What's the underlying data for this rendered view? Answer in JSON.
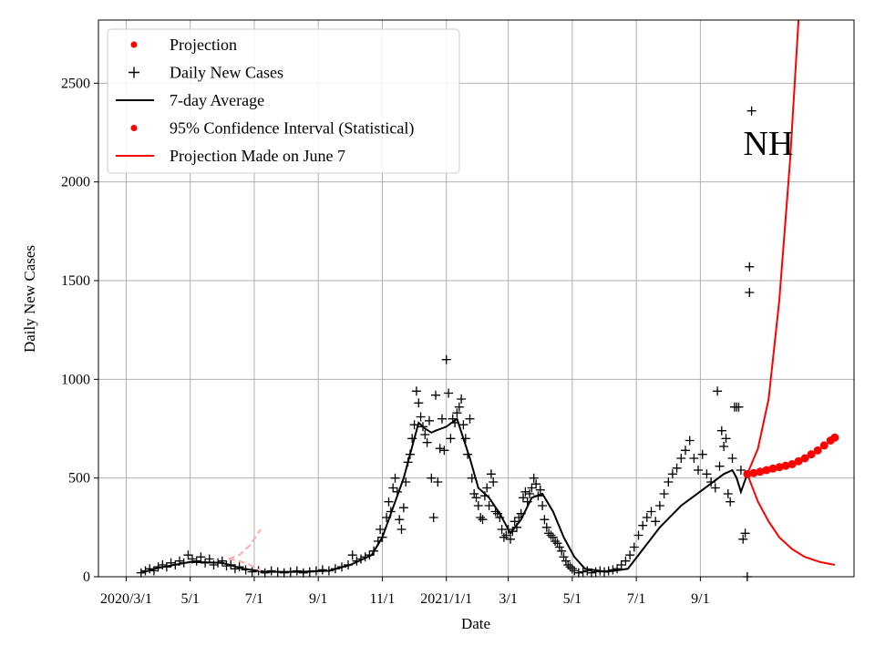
{
  "chart_data": {
    "type": "scatter",
    "title": "",
    "state_label": "NH",
    "xlabel": "Date",
    "ylabel": "Daily New Cases",
    "xlim": [
      -13,
      341
    ],
    "ylim": [
      0,
      2820
    ],
    "grid": true,
    "legend_position": "top-left",
    "x_ticks": [
      {
        "day": 0,
        "label": "2020/3/1"
      },
      {
        "day": 30,
        "label": "5/1"
      },
      {
        "day": 60,
        "label": "7/1"
      },
      {
        "day": 90,
        "label": "9/1"
      },
      {
        "day": 120,
        "label": "11/1"
      },
      {
        "day": 150,
        "label": "2021/1/1"
      },
      {
        "day": 179,
        "label": "3/1"
      },
      {
        "day": 209,
        "label": "5/1"
      },
      {
        "day": 239,
        "label": "7/1"
      },
      {
        "day": 269,
        "label": "9/1"
      }
    ],
    "y_ticks": [
      0,
      500,
      1000,
      1500,
      2000,
      2500
    ],
    "legend": [
      {
        "label": "Projection",
        "marker": "dot",
        "color": "#ff0000"
      },
      {
        "label": "Daily New Cases",
        "marker": "plus",
        "color": "#000000"
      },
      {
        "label": "7-day Average",
        "marker": "line",
        "color": "#000000"
      },
      {
        "label": "95% Confidence Interval (Statistical)",
        "marker": "dot",
        "color": "#ff0000"
      },
      {
        "label": "Projection Made on June 7",
        "marker": "line",
        "color": "#ff0000"
      }
    ],
    "series": [
      {
        "name": "Daily New Cases",
        "marker": "plus",
        "color": "#000000",
        "points": [
          [
            7,
            20
          ],
          [
            9,
            30
          ],
          [
            11,
            40
          ],
          [
            13,
            30
          ],
          [
            15,
            50
          ],
          [
            17,
            60
          ],
          [
            19,
            50
          ],
          [
            21,
            70
          ],
          [
            23,
            60
          ],
          [
            25,
            80
          ],
          [
            27,
            70
          ],
          [
            29,
            110
          ],
          [
            31,
            90
          ],
          [
            33,
            80
          ],
          [
            35,
            100
          ],
          [
            37,
            70
          ],
          [
            39,
            90
          ],
          [
            41,
            60
          ],
          [
            43,
            70
          ],
          [
            45,
            80
          ],
          [
            47,
            55
          ],
          [
            49,
            60
          ],
          [
            51,
            40
          ],
          [
            53,
            50
          ],
          [
            56,
            35
          ],
          [
            59,
            25
          ],
          [
            62,
            30
          ],
          [
            65,
            20
          ],
          [
            68,
            30
          ],
          [
            71,
            25
          ],
          [
            74,
            20
          ],
          [
            77,
            25
          ],
          [
            80,
            30
          ],
          [
            83,
            20
          ],
          [
            86,
            25
          ],
          [
            89,
            30
          ],
          [
            92,
            35
          ],
          [
            95,
            30
          ],
          [
            98,
            40
          ],
          [
            101,
            50
          ],
          [
            104,
            60
          ],
          [
            106,
            110
          ],
          [
            108,
            80
          ],
          [
            110,
            90
          ],
          [
            112,
            100
          ],
          [
            114,
            110
          ],
          [
            116,
            130
          ],
          [
            118,
            180
          ],
          [
            119,
            240
          ],
          [
            120,
            200
          ],
          [
            122,
            300
          ],
          [
            123,
            380
          ],
          [
            124,
            330
          ],
          [
            125,
            450
          ],
          [
            126,
            500
          ],
          [
            127,
            430
          ],
          [
            128,
            290
          ],
          [
            129,
            240
          ],
          [
            130,
            350
          ],
          [
            131,
            480
          ],
          [
            132,
            580
          ],
          [
            133,
            620
          ],
          [
            134,
            700
          ],
          [
            135,
            770
          ],
          [
            136,
            940
          ],
          [
            137,
            880
          ],
          [
            138,
            810
          ],
          [
            139,
            760
          ],
          [
            140,
            720
          ],
          [
            141,
            680
          ],
          [
            142,
            790
          ],
          [
            143,
            500
          ],
          [
            144,
            300
          ],
          [
            145,
            920
          ],
          [
            146,
            480
          ],
          [
            147,
            650
          ],
          [
            148,
            800
          ],
          [
            149,
            640
          ],
          [
            150,
            1100
          ],
          [
            151,
            930
          ],
          [
            152,
            700
          ],
          [
            153,
            800
          ],
          [
            154,
            780
          ],
          [
            155,
            830
          ],
          [
            156,
            860
          ],
          [
            157,
            900
          ],
          [
            158,
            770
          ],
          [
            159,
            700
          ],
          [
            160,
            620
          ],
          [
            161,
            800
          ],
          [
            162,
            500
          ],
          [
            163,
            420
          ],
          [
            164,
            400
          ],
          [
            165,
            360
          ],
          [
            166,
            300
          ],
          [
            167,
            290
          ],
          [
            168,
            410
          ],
          [
            169,
            450
          ],
          [
            170,
            360
          ],
          [
            171,
            520
          ],
          [
            172,
            480
          ],
          [
            173,
            330
          ],
          [
            174,
            320
          ],
          [
            175,
            300
          ],
          [
            176,
            240
          ],
          [
            177,
            200
          ],
          [
            178,
            210
          ],
          [
            179,
            240
          ],
          [
            180,
            190
          ],
          [
            181,
            230
          ],
          [
            182,
            280
          ],
          [
            183,
            250
          ],
          [
            184,
            300
          ],
          [
            185,
            320
          ],
          [
            186,
            400
          ],
          [
            187,
            430
          ],
          [
            188,
            380
          ],
          [
            189,
            420
          ],
          [
            190,
            450
          ],
          [
            191,
            500
          ],
          [
            192,
            470
          ],
          [
            193,
            410
          ],
          [
            194,
            440
          ],
          [
            195,
            360
          ],
          [
            196,
            290
          ],
          [
            197,
            250
          ],
          [
            198,
            220
          ],
          [
            199,
            210
          ],
          [
            200,
            200
          ],
          [
            201,
            180
          ],
          [
            202,
            170
          ],
          [
            203,
            150
          ],
          [
            204,
            130
          ],
          [
            205,
            100
          ],
          [
            206,
            80
          ],
          [
            207,
            60
          ],
          [
            208,
            50
          ],
          [
            209,
            40
          ],
          [
            210,
            30
          ],
          [
            212,
            20
          ],
          [
            214,
            25
          ],
          [
            216,
            30
          ],
          [
            218,
            20
          ],
          [
            220,
            25
          ],
          [
            222,
            30
          ],
          [
            224,
            25
          ],
          [
            226,
            30
          ],
          [
            228,
            35
          ],
          [
            230,
            40
          ],
          [
            232,
            60
          ],
          [
            234,
            80
          ],
          [
            236,
            110
          ],
          [
            238,
            150
          ],
          [
            240,
            210
          ],
          [
            242,
            260
          ],
          [
            244,
            300
          ],
          [
            246,
            330
          ],
          [
            248,
            280
          ],
          [
            250,
            360
          ],
          [
            252,
            420
          ],
          [
            254,
            480
          ],
          [
            256,
            520
          ],
          [
            258,
            550
          ],
          [
            260,
            600
          ],
          [
            262,
            640
          ],
          [
            264,
            690
          ],
          [
            266,
            600
          ],
          [
            268,
            540
          ],
          [
            270,
            620
          ],
          [
            272,
            520
          ],
          [
            274,
            480
          ],
          [
            276,
            450
          ],
          [
            277,
            940
          ],
          [
            278,
            560
          ],
          [
            279,
            740
          ],
          [
            280,
            660
          ],
          [
            281,
            700
          ],
          [
            282,
            420
          ],
          [
            283,
            380
          ],
          [
            284,
            600
          ],
          [
            285,
            860
          ],
          [
            286,
            860
          ],
          [
            287,
            860
          ],
          [
            288,
            540
          ],
          [
            289,
            190
          ],
          [
            290,
            220
          ],
          [
            291,
            0
          ],
          [
            292,
            1570
          ],
          [
            292,
            1440
          ],
          [
            293,
            2360
          ]
        ]
      },
      {
        "name": "7-day Average",
        "marker": "line",
        "color": "#000000",
        "points": [
          [
            7,
            20
          ],
          [
            15,
            45
          ],
          [
            30,
            75
          ],
          [
            45,
            70
          ],
          [
            55,
            40
          ],
          [
            65,
            25
          ],
          [
            80,
            25
          ],
          [
            95,
            30
          ],
          [
            105,
            60
          ],
          [
            115,
            110
          ],
          [
            120,
            200
          ],
          [
            125,
            350
          ],
          [
            130,
            500
          ],
          [
            135,
            700
          ],
          [
            137,
            780
          ],
          [
            140,
            750
          ],
          [
            143,
            730
          ],
          [
            145,
            740
          ],
          [
            150,
            760
          ],
          [
            155,
            800
          ],
          [
            158,
            700
          ],
          [
            161,
            600
          ],
          [
            165,
            450
          ],
          [
            170,
            400
          ],
          [
            175,
            320
          ],
          [
            180,
            220
          ],
          [
            185,
            290
          ],
          [
            190,
            400
          ],
          [
            195,
            420
          ],
          [
            200,
            330
          ],
          [
            205,
            200
          ],
          [
            210,
            100
          ],
          [
            215,
            40
          ],
          [
            225,
            25
          ],
          [
            235,
            40
          ],
          [
            240,
            110
          ],
          [
            250,
            250
          ],
          [
            260,
            360
          ],
          [
            270,
            440
          ],
          [
            280,
            520
          ],
          [
            284,
            540
          ],
          [
            286,
            500
          ],
          [
            288,
            430
          ],
          [
            291,
            520
          ]
        ]
      },
      {
        "name": "Projection",
        "marker": "dot",
        "color": "#ff0000",
        "points": [
          [
            291,
            520
          ],
          [
            294,
            525
          ],
          [
            297,
            532
          ],
          [
            300,
            540
          ],
          [
            303,
            548
          ],
          [
            306,
            555
          ],
          [
            309,
            562
          ],
          [
            312,
            570
          ],
          [
            315,
            585
          ],
          [
            318,
            600
          ],
          [
            321,
            620
          ],
          [
            324,
            640
          ],
          [
            327,
            665
          ],
          [
            330,
            690
          ],
          [
            332,
            705
          ]
        ]
      },
      {
        "name": "95% Confidence Interval (Statistical)",
        "marker": "line",
        "color": "#ff0000",
        "points": [
          [
            291,
            520
          ],
          [
            296,
            650
          ],
          [
            301,
            900
          ],
          [
            306,
            1400
          ],
          [
            311,
            2100
          ],
          [
            315,
            2820
          ]
        ]
      },
      {
        "name": "95% Confidence Interval (Statistical)",
        "marker": "line",
        "color": "#ff0000",
        "points": [
          [
            291,
            520
          ],
          [
            296,
            380
          ],
          [
            301,
            280
          ],
          [
            306,
            200
          ],
          [
            312,
            140
          ],
          [
            318,
            100
          ],
          [
            325,
            75
          ],
          [
            332,
            60
          ]
        ]
      },
      {
        "name": "Projection Made on June 7",
        "marker": "dashed",
        "color": "#ffaaaa",
        "points": [
          [
            48,
            90
          ],
          [
            53,
            80
          ],
          [
            58,
            60
          ],
          [
            63,
            30
          ]
        ]
      },
      {
        "name": "Projection Made on June 7",
        "marker": "dashed",
        "color": "#ffaaaa",
        "points": [
          [
            48,
            90
          ],
          [
            53,
            110
          ],
          [
            58,
            160
          ],
          [
            63,
            240
          ]
        ]
      }
    ]
  }
}
